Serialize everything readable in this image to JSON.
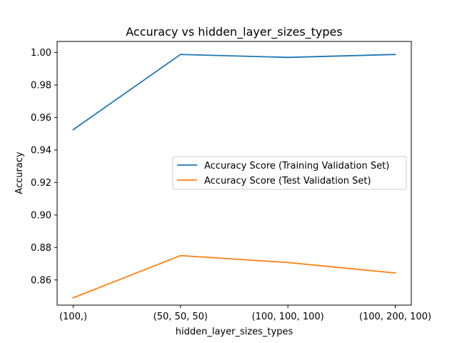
{
  "chart_data": {
    "type": "line",
    "title": "Accuracy vs hidden_layer_sizes_types",
    "xlabel": "hidden_layer_sizes_types",
    "ylabel": "Accuracy",
    "categories": [
      "(100,)",
      "(50, 50, 50)",
      "(100, 100, 100)",
      "(100, 200, 100)"
    ],
    "ylim": [
      0.8445,
      1.0068
    ],
    "yticks": [
      0.86,
      0.88,
      0.9,
      0.92,
      0.94,
      0.96,
      0.98,
      1.0
    ],
    "ytick_labels": [
      "0.86",
      "0.88",
      "0.90",
      "0.92",
      "0.94",
      "0.96",
      "0.98",
      "1.00"
    ],
    "grid": false,
    "legend_position": "center-right",
    "series": [
      {
        "name": "Accuracy Score (Training Validation Set)",
        "color": "#1f77b4",
        "values": [
          0.9525,
          0.9988,
          0.997,
          0.9988
        ]
      },
      {
        "name": "Accuracy Score (Test Validation Set)",
        "color": "#ff7f0e",
        "values": [
          0.849,
          0.875,
          0.8707,
          0.8643
        ]
      }
    ]
  }
}
